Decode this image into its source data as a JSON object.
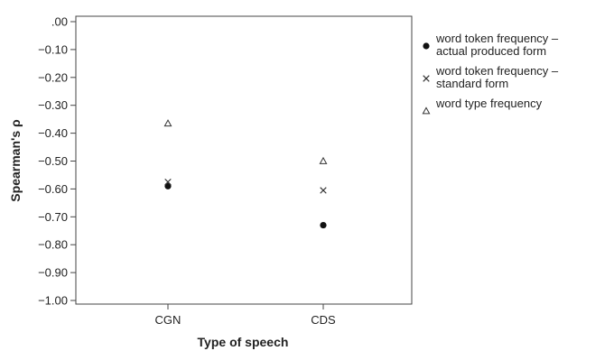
{
  "chart_data": {
    "type": "scatter",
    "xlabel": "Type of speech",
    "ylabel": "Spearman's ρ",
    "categories": [
      "CGN",
      "CDS"
    ],
    "ylim": [
      -1.0,
      0.0
    ],
    "yticks": [
      0.0,
      -0.1,
      -0.2,
      -0.3,
      -0.4,
      -0.5,
      -0.6,
      -0.7,
      -0.8,
      -0.9,
      -1.0
    ],
    "ytick_labels": [
      ".00",
      "−0.10",
      "−0.20",
      "−0.30",
      "−0.40",
      "−0.50",
      "−0.60",
      "−0.70",
      "−0.80",
      "−0.90",
      "−1.00"
    ],
    "grid": false,
    "legend_position": "right",
    "series": [
      {
        "name": "word token frequency – actual produced form",
        "legend_lines": [
          "word token frequency –",
          "actual produced form"
        ],
        "marker": "dot",
        "values": [
          -0.59,
          -0.73
        ]
      },
      {
        "name": "word token frequency – standard form",
        "legend_lines": [
          "word token frequency –",
          "standard form"
        ],
        "marker": "cross",
        "values": [
          -0.575,
          -0.605
        ]
      },
      {
        "name": "word type frequency",
        "legend_lines": [
          "word type frequency"
        ],
        "marker": "triangle",
        "values": [
          -0.365,
          -0.5
        ]
      }
    ]
  }
}
